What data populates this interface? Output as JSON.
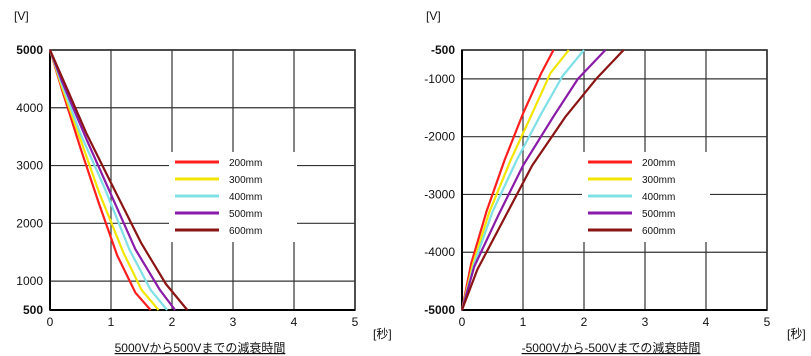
{
  "chart_data": [
    {
      "type": "line",
      "caption": "5000Vから500Vまでの減衰時間",
      "ylabel": "[V]",
      "xlabel": "[秒]",
      "xlim": [
        0,
        5
      ],
      "ylim": [
        500,
        5000
      ],
      "x_ticks": [
        "0",
        "1",
        "2",
        "3",
        "4",
        "5"
      ],
      "y_ticks": [
        "5000",
        "4000",
        "3000",
        "2000",
        "1000",
        "500"
      ],
      "grid": true,
      "legend": "center-right",
      "series": [
        {
          "name": "200mm",
          "color": "#ff1e1e",
          "x": [
            0,
            0.2,
            0.5,
            0.8,
            1.1,
            1.4,
            1.65
          ],
          "y": [
            5000,
            4300,
            3300,
            2350,
            1450,
            800,
            500
          ]
        },
        {
          "name": "300mm",
          "color": "#f2e600",
          "x": [
            0,
            0.2,
            0.5,
            0.8,
            1.2,
            1.5,
            1.78
          ],
          "y": [
            5000,
            4350,
            3450,
            2550,
            1500,
            850,
            500
          ]
        },
        {
          "name": "400mm",
          "color": "#7fe0e6",
          "x": [
            0,
            0.2,
            0.5,
            0.9,
            1.3,
            1.65,
            1.92
          ],
          "y": [
            5000,
            4400,
            3550,
            2600,
            1550,
            850,
            500
          ]
        },
        {
          "name": "500mm",
          "color": "#8a1aa8",
          "x": [
            0,
            0.2,
            0.6,
            1.0,
            1.4,
            1.8,
            2.05
          ],
          "y": [
            5000,
            4450,
            3450,
            2500,
            1550,
            850,
            500
          ]
        },
        {
          "name": "600mm",
          "color": "#8b1414",
          "x": [
            0,
            0.25,
            0.6,
            1.0,
            1.5,
            1.9,
            2.25
          ],
          "y": [
            5000,
            4400,
            3550,
            2700,
            1650,
            950,
            500
          ]
        }
      ]
    },
    {
      "type": "line",
      "caption": "-5000Vから-500Vまでの減衰時間",
      "ylabel": "[V]",
      "xlabel": "[秒]",
      "xlim": [
        0,
        5
      ],
      "ylim": [
        -5000,
        -500
      ],
      "x_ticks": [
        "0",
        "1",
        "2",
        "3",
        "4",
        "5"
      ],
      "y_ticks": [
        "-500",
        "-1000",
        "-2000",
        "-3000",
        "-4000",
        "-5000"
      ],
      "grid": true,
      "legend": "center-right",
      "series": [
        {
          "name": "200mm",
          "color": "#ff1e1e",
          "x": [
            0,
            0.15,
            0.4,
            0.7,
            1.0,
            1.3,
            1.5
          ],
          "y": [
            -5000,
            -4200,
            -3300,
            -2400,
            -1600,
            -900,
            -500
          ]
        },
        {
          "name": "300mm",
          "color": "#f2e600",
          "x": [
            0,
            0.18,
            0.45,
            0.8,
            1.15,
            1.45,
            1.75
          ],
          "y": [
            -5000,
            -4200,
            -3300,
            -2400,
            -1600,
            -900,
            -500
          ]
        },
        {
          "name": "400mm",
          "color": "#7fe0e6",
          "x": [
            0,
            0.2,
            0.5,
            0.9,
            1.3,
            1.65,
            2.0
          ],
          "y": [
            -5000,
            -4200,
            -3300,
            -2400,
            -1600,
            -950,
            -500
          ]
        },
        {
          "name": "500mm",
          "color": "#8a1aa8",
          "x": [
            0,
            0.2,
            0.6,
            1.0,
            1.5,
            1.9,
            2.35
          ],
          "y": [
            -5000,
            -4250,
            -3350,
            -2500,
            -1650,
            -1000,
            -500
          ]
        },
        {
          "name": "600mm",
          "color": "#8b1414",
          "x": [
            0,
            0.25,
            0.7,
            1.15,
            1.7,
            2.2,
            2.65
          ],
          "y": [
            -5000,
            -4300,
            -3400,
            -2500,
            -1650,
            -1000,
            -500
          ]
        }
      ]
    }
  ]
}
